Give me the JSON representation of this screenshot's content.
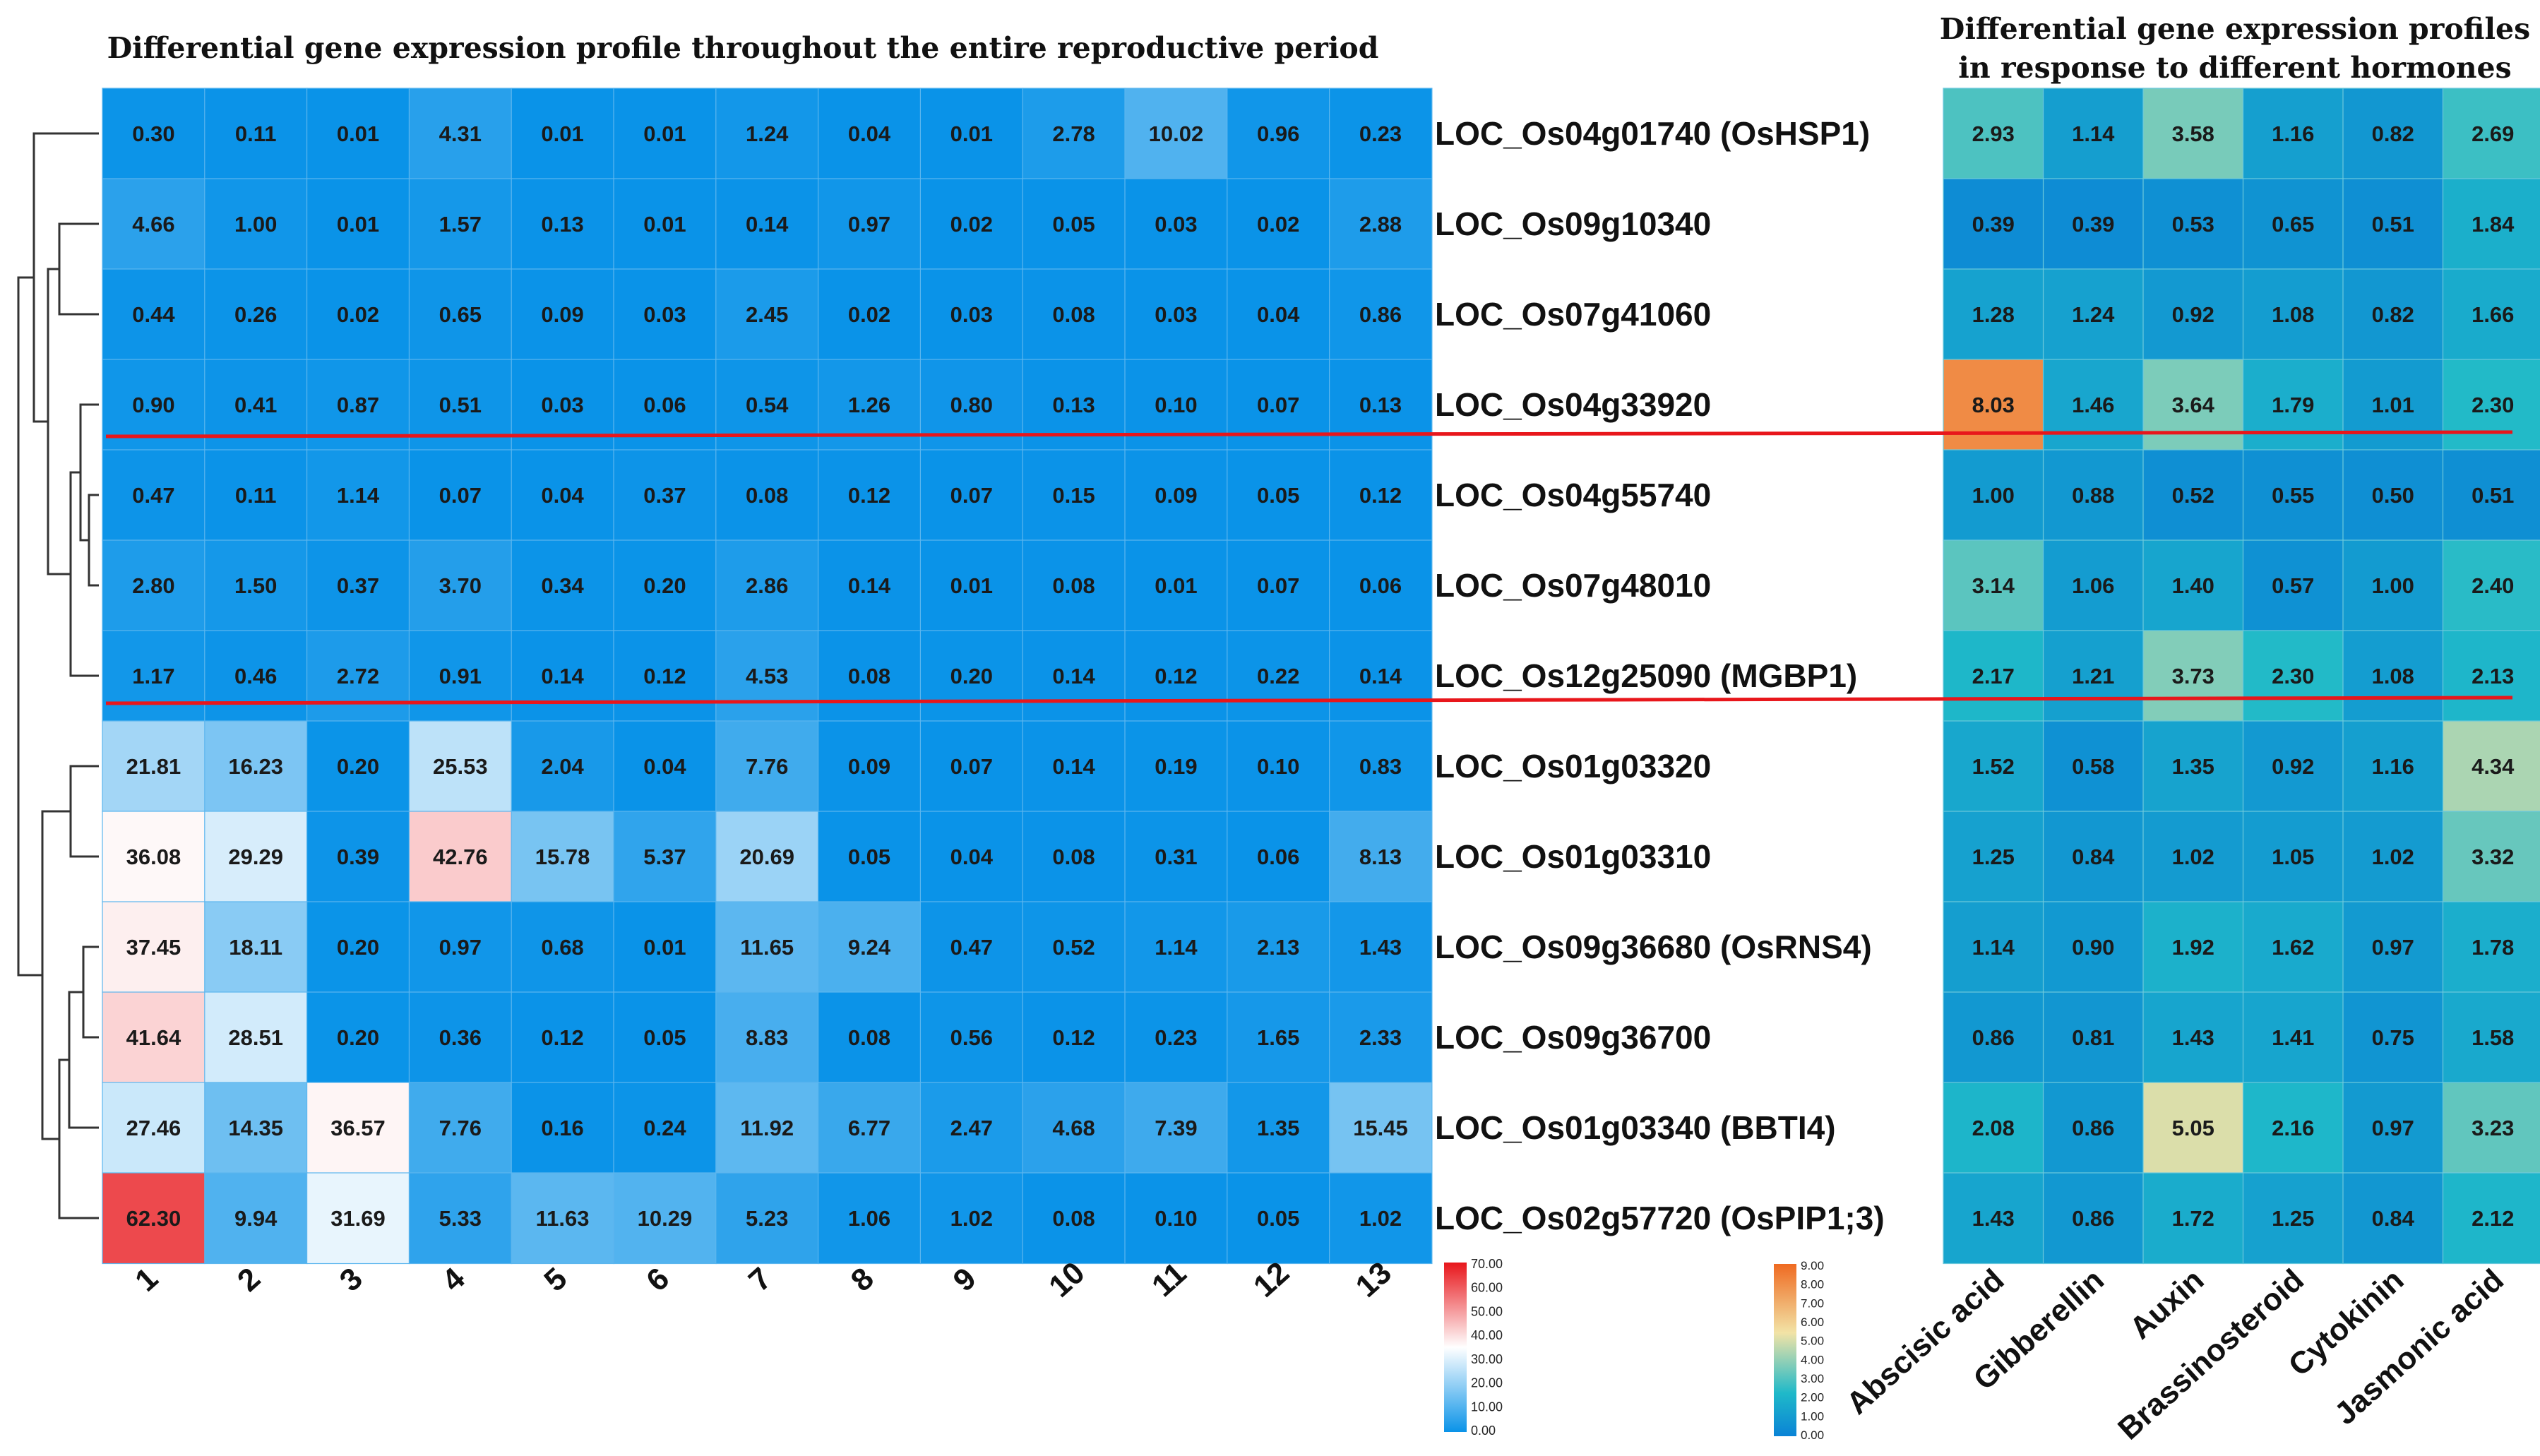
{
  "chart_data": [
    {
      "type": "heatmap",
      "title": "Differential gene expression profile throughout the entire reproductive period",
      "columns": [
        "1",
        "2",
        "3",
        "4",
        "5",
        "6",
        "7",
        "8",
        "9",
        "10",
        "11",
        "12",
        "13"
      ],
      "rows": [
        "LOC_Os04g01740 (OsHSP1)",
        "LOC_Os09g10340",
        "LOC_Os07g41060",
        "LOC_Os04g33920",
        "LOC_Os04g55740",
        "LOC_Os07g48010",
        "LOC_Os12g25090 (MGBP1)",
        "LOC_Os01g03320",
        "LOC_Os01g03310",
        "LOC_Os09g36680 (OsRNS4)",
        "LOC_Os09g36700",
        "LOC_Os01g03340 (BBTI4)",
        "LOC_Os02g57720 (OsPIP1;3)"
      ],
      "values": [
        [
          "0.30",
          "0.11",
          "0.01",
          "4.31",
          "0.01",
          "0.01",
          "1.24",
          "0.04",
          "0.01",
          "2.78",
          "10.02",
          "0.96",
          "0.23"
        ],
        [
          "4.66",
          "1.00",
          "0.01",
          "1.57",
          "0.13",
          "0.01",
          "0.14",
          "0.97",
          "0.02",
          "0.05",
          "0.03",
          "0.02",
          "2.88"
        ],
        [
          "0.44",
          "0.26",
          "0.02",
          "0.65",
          "0.09",
          "0.03",
          "2.45",
          "0.02",
          "0.03",
          "0.08",
          "0.03",
          "0.04",
          "0.86"
        ],
        [
          "0.90",
          "0.41",
          "0.87",
          "0.51",
          "0.03",
          "0.06",
          "0.54",
          "1.26",
          "0.80",
          "0.13",
          "0.10",
          "0.07",
          "0.13"
        ],
        [
          "0.47",
          "0.11",
          "1.14",
          "0.07",
          "0.04",
          "0.37",
          "0.08",
          "0.12",
          "0.07",
          "0.15",
          "0.09",
          "0.05",
          "0.12"
        ],
        [
          "2.80",
          "1.50",
          "0.37",
          "3.70",
          "0.34",
          "0.20",
          "2.86",
          "0.14",
          "0.01",
          "0.08",
          "0.01",
          "0.07",
          "0.06"
        ],
        [
          "1.17",
          "0.46",
          "2.72",
          "0.91",
          "0.14",
          "0.12",
          "4.53",
          "0.08",
          "0.20",
          "0.14",
          "0.12",
          "0.22",
          "0.14"
        ],
        [
          "21.81",
          "16.23",
          "0.20",
          "25.53",
          "2.04",
          "0.04",
          "7.76",
          "0.09",
          "0.07",
          "0.14",
          "0.19",
          "0.10",
          "0.83"
        ],
        [
          "36.08",
          "29.29",
          "0.39",
          "42.76",
          "15.78",
          "5.37",
          "20.69",
          "0.05",
          "0.04",
          "0.08",
          "0.31",
          "0.06",
          "8.13"
        ],
        [
          "37.45",
          "18.11",
          "0.20",
          "0.97",
          "0.68",
          "0.01",
          "11.65",
          "9.24",
          "0.47",
          "0.52",
          "1.14",
          "2.13",
          "1.43"
        ],
        [
          "41.64",
          "28.51",
          "0.20",
          "0.36",
          "0.12",
          "0.05",
          "8.83",
          "0.08",
          "0.56",
          "0.12",
          "0.23",
          "1.65",
          "2.33"
        ],
        [
          "27.46",
          "14.35",
          "36.57",
          "7.76",
          "0.16",
          "0.24",
          "11.92",
          "6.77",
          "2.47",
          "4.68",
          "7.39",
          "1.35",
          "15.45"
        ],
        [
          "62.30",
          "9.94",
          "31.69",
          "5.33",
          "11.63",
          "10.29",
          "5.23",
          "1.06",
          "1.02",
          "0.08",
          "0.10",
          "0.05",
          "1.02"
        ]
      ],
      "color_range": [
        0,
        70
      ],
      "colorbar_ticks": [
        "70.00",
        "60.00",
        "50.00",
        "40.00",
        "30.00",
        "20.00",
        "10.00",
        "0.00"
      ],
      "colors": {
        "low": "#0a93e8",
        "mid": "#ffffff",
        "high": "#e8161b"
      }
    },
    {
      "type": "heatmap",
      "title": "Differential gene expression profiles in response to different hormones",
      "title_lines": [
        "Differential gene expression profiles",
        "in response to different hormones"
      ],
      "columns": [
        "Abscisic acid",
        "Gibberellin",
        "Auxin",
        "Brassinosteroid",
        "Cytokinin",
        "Jasmonic acid"
      ],
      "values": [
        [
          "2.93",
          "1.14",
          "3.58",
          "1.16",
          "0.82",
          "2.69"
        ],
        [
          "0.39",
          "0.39",
          "0.53",
          "0.65",
          "0.51",
          "1.84"
        ],
        [
          "1.28",
          "1.24",
          "0.92",
          "1.08",
          "0.82",
          "1.66"
        ],
        [
          "8.03",
          "1.46",
          "3.64",
          "1.79",
          "1.01",
          "2.30"
        ],
        [
          "1.00",
          "0.88",
          "0.52",
          "0.55",
          "0.50",
          "0.51"
        ],
        [
          "3.14",
          "1.06",
          "1.40",
          "0.57",
          "1.00",
          "2.40"
        ],
        [
          "2.17",
          "1.21",
          "3.73",
          "2.30",
          "1.08",
          "2.13"
        ],
        [
          "1.52",
          "0.58",
          "1.35",
          "0.92",
          "1.16",
          "4.34"
        ],
        [
          "1.25",
          "0.84",
          "1.02",
          "1.05",
          "1.02",
          "3.32"
        ],
        [
          "1.14",
          "0.90",
          "1.92",
          "1.62",
          "0.97",
          "1.78"
        ],
        [
          "0.86",
          "0.81",
          "1.43",
          "1.41",
          "0.75",
          "1.58"
        ],
        [
          "2.08",
          "0.86",
          "5.05",
          "2.16",
          "0.97",
          "3.23"
        ],
        [
          "1.43",
          "0.86",
          "1.72",
          "1.25",
          "0.84",
          "2.12"
        ]
      ],
      "color_range": [
        0,
        9
      ],
      "colorbar_ticks": [
        "9.00",
        "8.00",
        "7.00",
        "6.00",
        "5.00",
        "4.00",
        "3.00",
        "2.00",
        "1.00",
        "0.00"
      ],
      "colors": {
        "low": "#0a83d6",
        "c1": "#1fb9c9",
        "c2": "#f2e3a6",
        "high": "#ef6a21"
      }
    }
  ],
  "separator_color": "#e8161b",
  "dendrogram_color": "#333333"
}
